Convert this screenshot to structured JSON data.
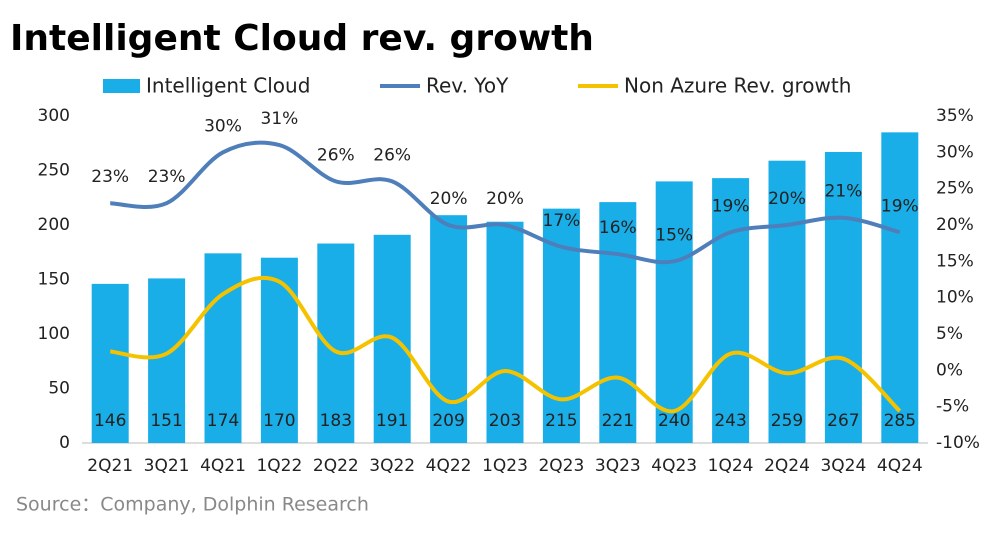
{
  "chart_data": {
    "type": "bar",
    "title": "Intelligent Cloud rev. growth",
    "source": "Source：Company, Dolphin Research",
    "categories": [
      "2Q21",
      "3Q21",
      "4Q21",
      "1Q22",
      "2Q22",
      "3Q22",
      "4Q22",
      "1Q23",
      "2Q23",
      "3Q23",
      "4Q23",
      "1Q24",
      "2Q24",
      "3Q24",
      "4Q24"
    ],
    "series": [
      {
        "name": "Intelligent Cloud",
        "type": "bar",
        "color": "#19aee8",
        "values": [
          146,
          151,
          174,
          170,
          183,
          191,
          209,
          203,
          215,
          221,
          240,
          243,
          259,
          267,
          285
        ]
      },
      {
        "name": "Rev. YoY",
        "type": "line",
        "axis": "y2",
        "color": "#4f7fba",
        "values": [
          23,
          23,
          30,
          31,
          26,
          26,
          20,
          20,
          17,
          16,
          15,
          19,
          20,
          21,
          19
        ],
        "value_labels": [
          "23%",
          "23%",
          "30%",
          "31%",
          "26%",
          "26%",
          "20%",
          "20%",
          "17%",
          "16%",
          "15%",
          "19%",
          "20%",
          "21%",
          "19%"
        ]
      },
      {
        "name": "Non Azure Rev. growth",
        "type": "line",
        "axis": "y2",
        "color": "#f5c200",
        "values": [
          2.6,
          2.3,
          10.5,
          12.2,
          2.6,
          4.5,
          -4.3,
          -0.1,
          -4,
          -1,
          -5.6,
          2.3,
          -0.4,
          1.6,
          -5.6
        ]
      }
    ],
    "ylim": [
      0,
      300
    ],
    "yticks": [
      0,
      50,
      100,
      150,
      200,
      250,
      300
    ],
    "y2lim": [
      -10,
      35
    ],
    "y2ticks": [
      {
        "value": -10,
        "label": "-10%"
      },
      {
        "value": -5,
        "label": "-5%"
      },
      {
        "value": 0,
        "label": "0%"
      },
      {
        "value": 5,
        "label": "5%"
      },
      {
        "value": 10,
        "label": "10%"
      },
      {
        "value": 15,
        "label": "15%"
      },
      {
        "value": 20,
        "label": "20%"
      },
      {
        "value": 25,
        "label": "25%"
      },
      {
        "value": 30,
        "label": "30%"
      },
      {
        "value": 35,
        "label": "35%"
      }
    ]
  }
}
